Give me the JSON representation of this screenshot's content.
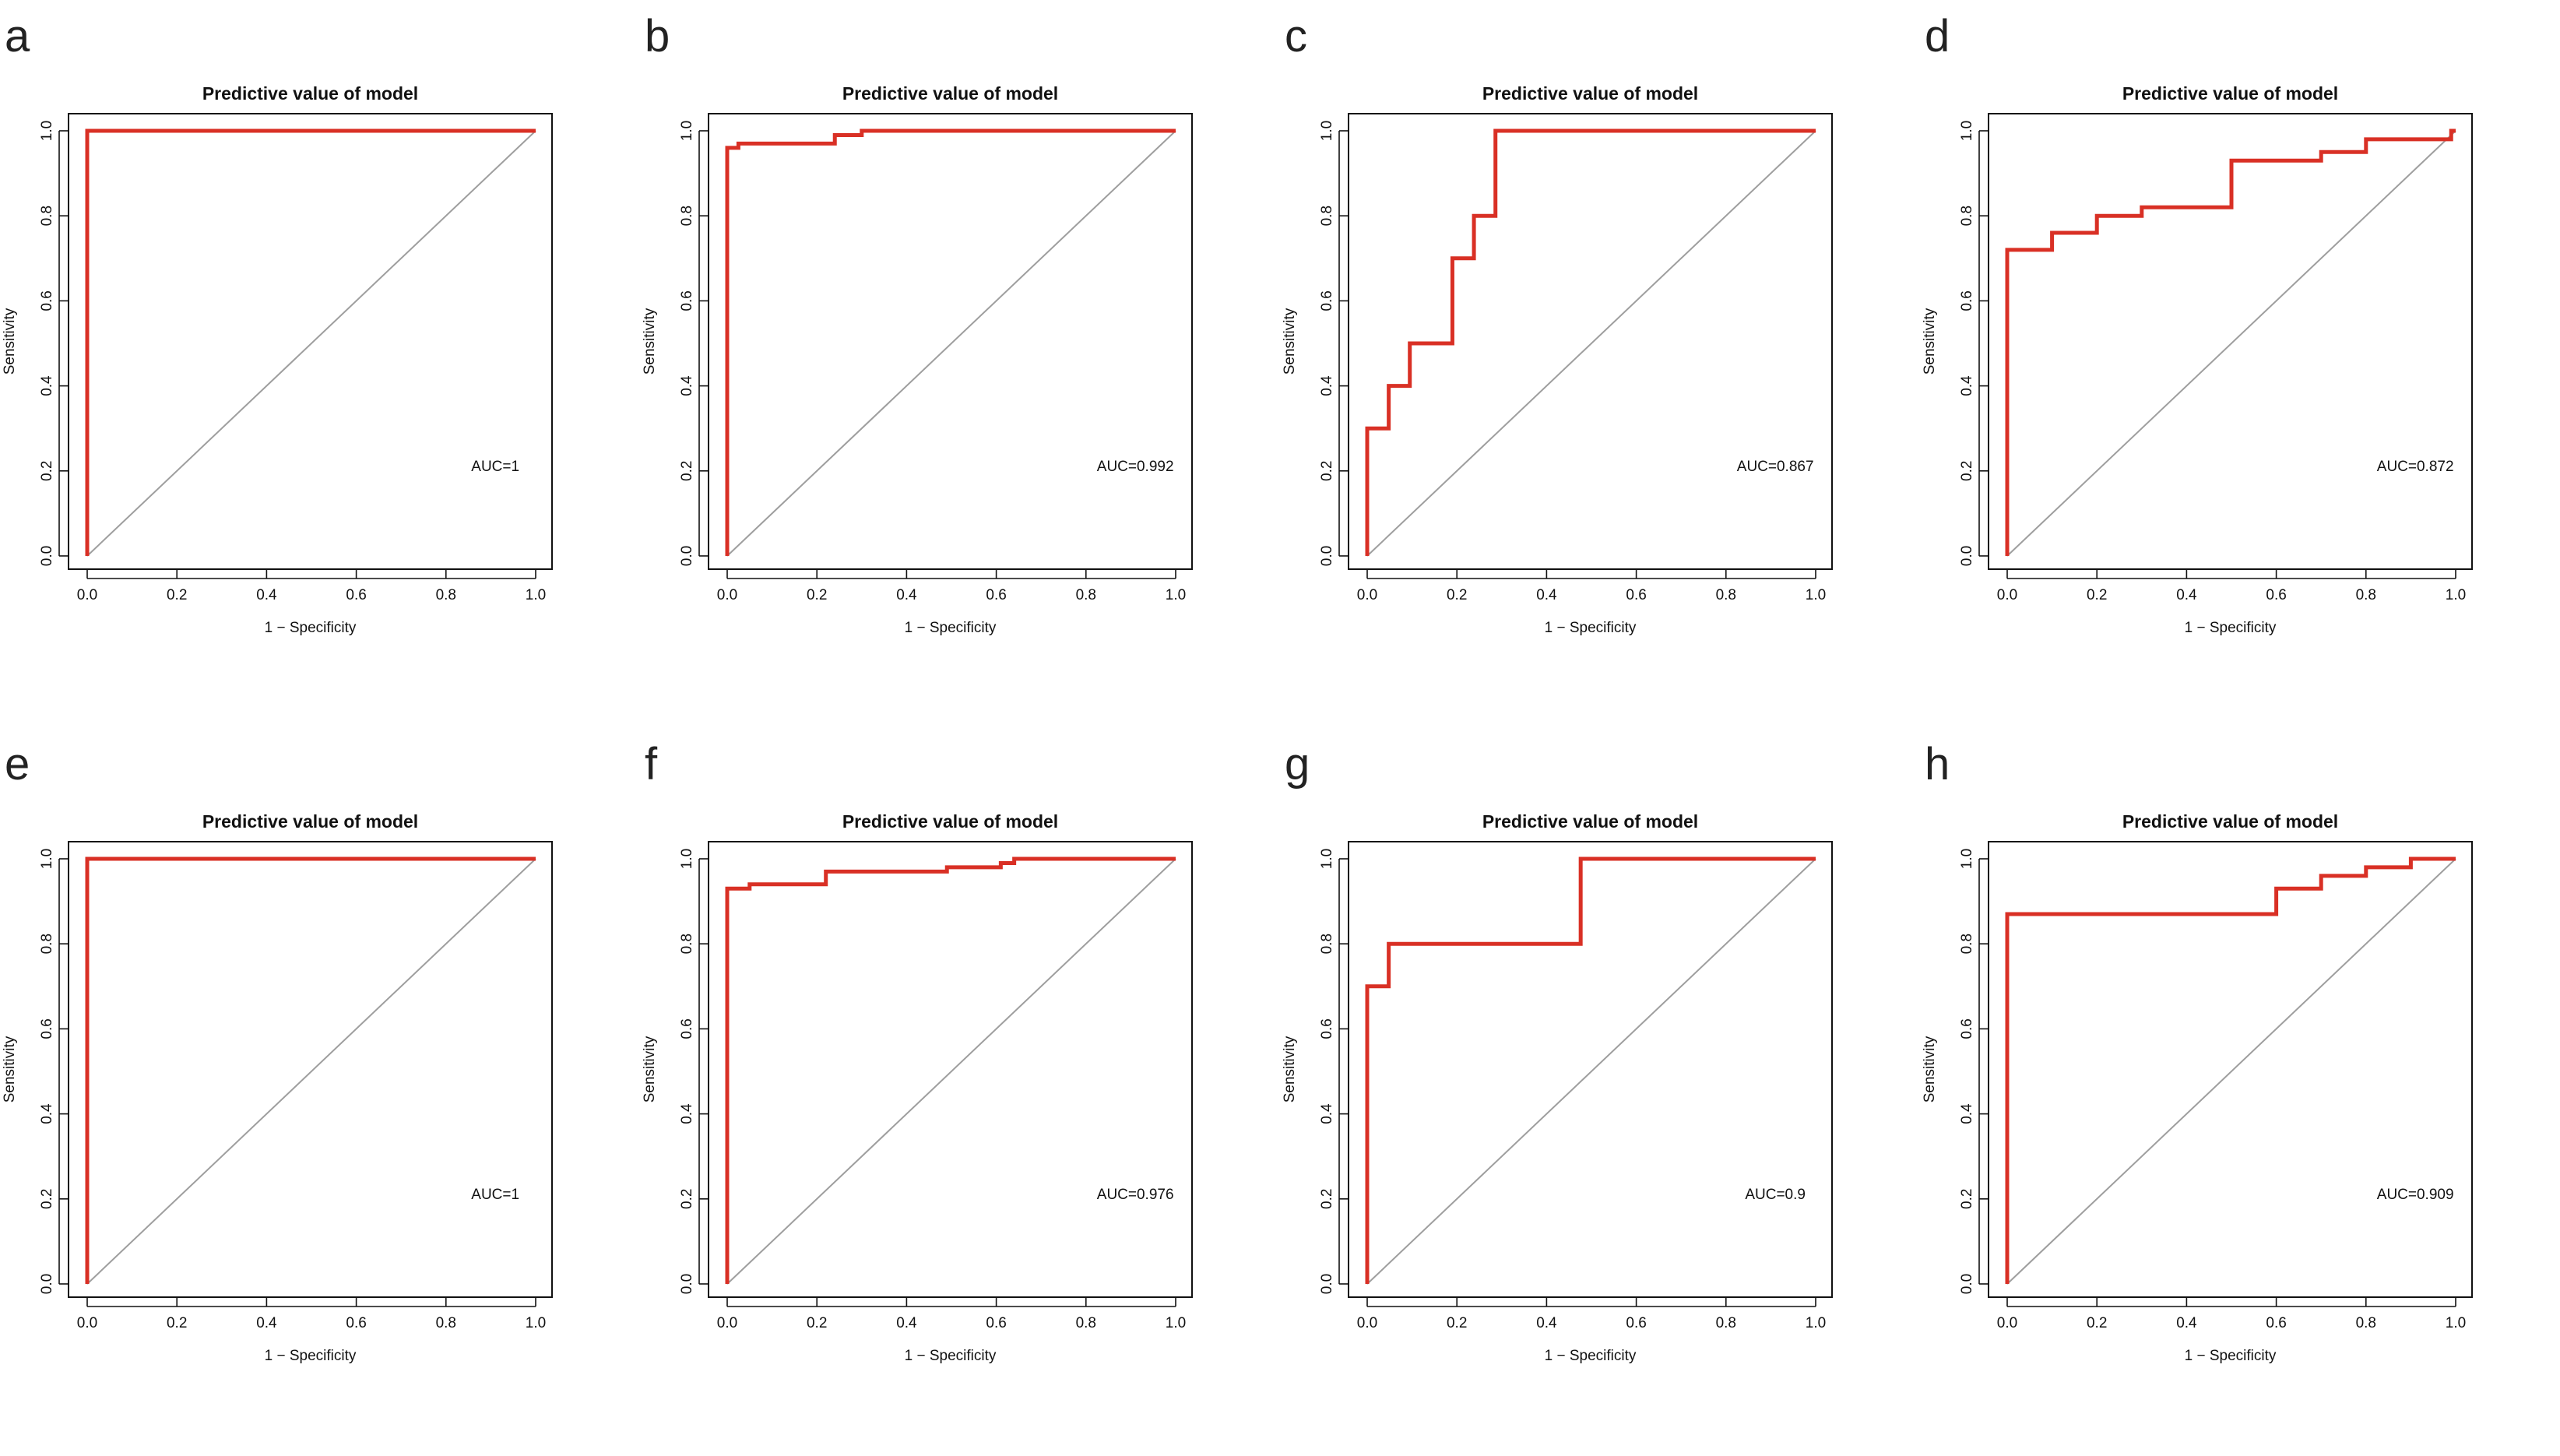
{
  "figure": {
    "background": "#ffffff",
    "curve_color": "#d93025",
    "diag_color": "#9e9e9e",
    "frame_color": "#111111"
  },
  "chart_data": [
    {
      "panel": "a",
      "type": "line",
      "title": "Predictive value of model",
      "xlabel": "1 − Specificity",
      "ylabel": "Sensitivity",
      "xlim": [
        0,
        1
      ],
      "ylim": [
        0,
        1
      ],
      "xticks": [
        "0.0",
        "0.2",
        "0.4",
        "0.6",
        "0.8",
        "1.0"
      ],
      "yticks": [
        "0.0",
        "0.2",
        "0.4",
        "0.6",
        "0.8",
        "1.0"
      ],
      "auc_label": "AUC=1",
      "series": [
        {
          "name": "ROC",
          "x": [
            0,
            0,
            1
          ],
          "y": [
            0,
            1,
            1
          ]
        },
        {
          "name": "reference",
          "x": [
            0,
            1
          ],
          "y": [
            0,
            1
          ]
        }
      ]
    },
    {
      "panel": "b",
      "type": "line",
      "title": "Predictive value of model",
      "xlabel": "1 − Specificity",
      "ylabel": "Sensitivity",
      "xlim": [
        0,
        1
      ],
      "ylim": [
        0,
        1
      ],
      "xticks": [
        "0.0",
        "0.2",
        "0.4",
        "0.6",
        "0.8",
        "1.0"
      ],
      "yticks": [
        "0.0",
        "0.2",
        "0.4",
        "0.6",
        "0.8",
        "1.0"
      ],
      "auc_label": "AUC=0.992",
      "series": [
        {
          "name": "ROC",
          "x": [
            0,
            0,
            0.025,
            0.025,
            0.24,
            0.24,
            0.3,
            0.3,
            1
          ],
          "y": [
            0,
            0.96,
            0.96,
            0.97,
            0.97,
            0.99,
            0.99,
            1,
            1
          ]
        },
        {
          "name": "reference",
          "x": [
            0,
            1
          ],
          "y": [
            0,
            1
          ]
        }
      ]
    },
    {
      "panel": "c",
      "type": "line",
      "title": "Predictive value of model",
      "xlabel": "1 − Specificity",
      "ylabel": "Sensitivity",
      "xlim": [
        0,
        1
      ],
      "ylim": [
        0,
        1
      ],
      "xticks": [
        "0.0",
        "0.2",
        "0.4",
        "0.6",
        "0.8",
        "1.0"
      ],
      "yticks": [
        "0.0",
        "0.2",
        "0.4",
        "0.6",
        "0.8",
        "1.0"
      ],
      "auc_label": "AUC=0.867",
      "series": [
        {
          "name": "ROC",
          "x": [
            0,
            0,
            0.048,
            0.048,
            0.095,
            0.095,
            0.19,
            0.19,
            0.238,
            0.238,
            0.286,
            0.286,
            1
          ],
          "y": [
            0,
            0.3,
            0.3,
            0.4,
            0.4,
            0.5,
            0.5,
            0.7,
            0.7,
            0.8,
            0.8,
            1,
            1
          ]
        },
        {
          "name": "reference",
          "x": [
            0,
            1
          ],
          "y": [
            0,
            1
          ]
        }
      ]
    },
    {
      "panel": "d",
      "type": "line",
      "title": "Predictive value of model",
      "xlabel": "1 − Specificity",
      "ylabel": "Sensitivity",
      "xlim": [
        0,
        1
      ],
      "ylim": [
        0,
        1
      ],
      "xticks": [
        "0.0",
        "0.2",
        "0.4",
        "0.6",
        "0.8",
        "1.0"
      ],
      "yticks": [
        "0.0",
        "0.2",
        "0.4",
        "0.6",
        "0.8",
        "1.0"
      ],
      "auc_label": "AUC=0.872",
      "series": [
        {
          "name": "ROC",
          "x": [
            0,
            0,
            0.1,
            0.1,
            0.2,
            0.2,
            0.3,
            0.3,
            0.5,
            0.5,
            0.7,
            0.7,
            0.8,
            0.8,
            0.99,
            0.99,
            1
          ],
          "y": [
            0,
            0.72,
            0.72,
            0.76,
            0.76,
            0.8,
            0.8,
            0.82,
            0.82,
            0.93,
            0.93,
            0.95,
            0.95,
            0.98,
            0.98,
            1,
            1
          ]
        },
        {
          "name": "reference",
          "x": [
            0,
            1
          ],
          "y": [
            0,
            1
          ]
        }
      ]
    },
    {
      "panel": "e",
      "type": "line",
      "title": "Predictive value of model",
      "xlabel": "1 − Specificity",
      "ylabel": "Sensitivity",
      "xlim": [
        0,
        1
      ],
      "ylim": [
        0,
        1
      ],
      "xticks": [
        "0.0",
        "0.2",
        "0.4",
        "0.6",
        "0.8",
        "1.0"
      ],
      "yticks": [
        "0.0",
        "0.2",
        "0.4",
        "0.6",
        "0.8",
        "1.0"
      ],
      "auc_label": "AUC=1",
      "series": [
        {
          "name": "ROC",
          "x": [
            0,
            0,
            1
          ],
          "y": [
            0,
            1,
            1
          ]
        },
        {
          "name": "reference",
          "x": [
            0,
            1
          ],
          "y": [
            0,
            1
          ]
        }
      ]
    },
    {
      "panel": "f",
      "type": "line",
      "title": "Predictive value of model",
      "xlabel": "1 − Specificity",
      "ylabel": "Sensitivity",
      "xlim": [
        0,
        1
      ],
      "ylim": [
        0,
        1
      ],
      "xticks": [
        "0.0",
        "0.2",
        "0.4",
        "0.6",
        "0.8",
        "1.0"
      ],
      "yticks": [
        "0.0",
        "0.2",
        "0.4",
        "0.6",
        "0.8",
        "1.0"
      ],
      "auc_label": "AUC=0.976",
      "series": [
        {
          "name": "ROC",
          "x": [
            0,
            0,
            0.05,
            0.05,
            0.22,
            0.22,
            0.49,
            0.49,
            0.61,
            0.61,
            0.64,
            0.64,
            1
          ],
          "y": [
            0,
            0.93,
            0.93,
            0.94,
            0.94,
            0.97,
            0.97,
            0.98,
            0.98,
            0.99,
            0.99,
            1,
            1
          ]
        },
        {
          "name": "reference",
          "x": [
            0,
            1
          ],
          "y": [
            0,
            1
          ]
        }
      ]
    },
    {
      "panel": "g",
      "type": "line",
      "title": "Predictive value of model",
      "xlabel": "1 − Specificity",
      "ylabel": "Sensitivity",
      "xlim": [
        0,
        1
      ],
      "ylim": [
        0,
        1
      ],
      "xticks": [
        "0.0",
        "0.2",
        "0.4",
        "0.6",
        "0.8",
        "1.0"
      ],
      "yticks": [
        "0.0",
        "0.2",
        "0.4",
        "0.6",
        "0.8",
        "1.0"
      ],
      "auc_label": "AUC=0.9",
      "series": [
        {
          "name": "ROC",
          "x": [
            0,
            0,
            0.048,
            0.048,
            0.476,
            0.476,
            1
          ],
          "y": [
            0,
            0.7,
            0.7,
            0.8,
            0.8,
            1,
            1
          ]
        },
        {
          "name": "reference",
          "x": [
            0,
            1
          ],
          "y": [
            0,
            1
          ]
        }
      ]
    },
    {
      "panel": "h",
      "type": "line",
      "title": "Predictive value of model",
      "xlabel": "1 − Specificity",
      "ylabel": "Sensitivity",
      "xlim": [
        0,
        1
      ],
      "ylim": [
        0,
        1
      ],
      "xticks": [
        "0.0",
        "0.2",
        "0.4",
        "0.6",
        "0.8",
        "1.0"
      ],
      "yticks": [
        "0.0",
        "0.2",
        "0.4",
        "0.6",
        "0.8",
        "1.0"
      ],
      "auc_label": "AUC=0.909",
      "series": [
        {
          "name": "ROC",
          "x": [
            0,
            0,
            0.6,
            0.6,
            0.7,
            0.7,
            0.8,
            0.8,
            0.9,
            0.9,
            1
          ],
          "y": [
            0,
            0.87,
            0.87,
            0.93,
            0.93,
            0.96,
            0.96,
            0.98,
            0.98,
            1,
            1
          ]
        },
        {
          "name": "reference",
          "x": [
            0,
            1
          ],
          "y": [
            0,
            1
          ]
        }
      ]
    }
  ]
}
